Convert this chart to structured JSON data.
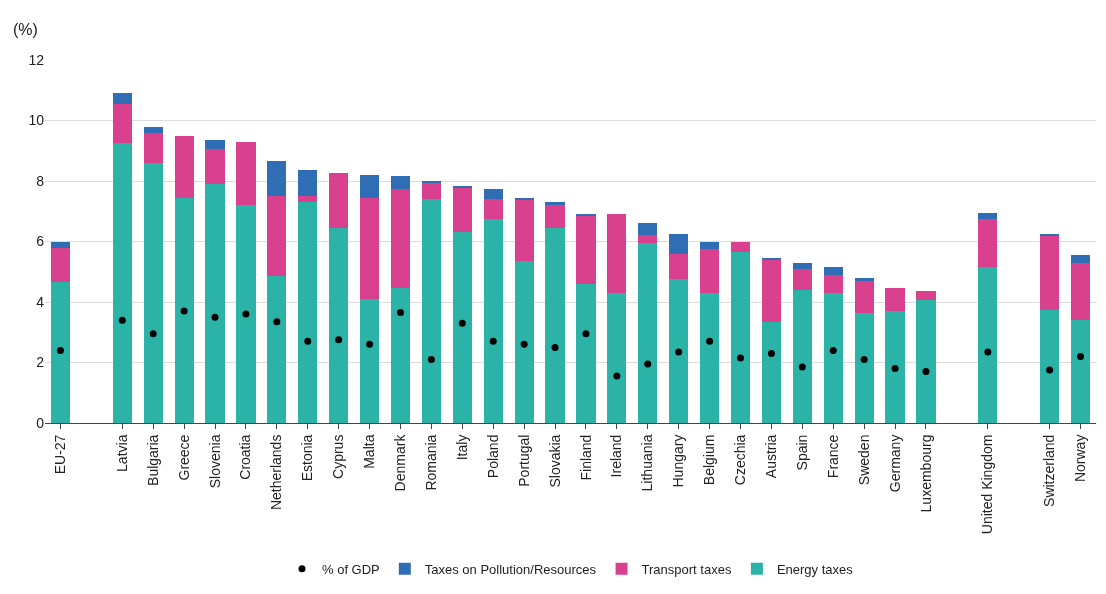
{
  "chart_data": {
    "type": "bar",
    "stacked": true,
    "ylabel": "(%)",
    "categories": [
      "EU-27",
      null,
      "Latvia",
      "Bulgaria",
      "Greece",
      "Slovenia",
      "Croatia",
      "Netherlands",
      "Estonia",
      "Cyprus",
      "Malta",
      "Denmark",
      "Romania",
      "Italy",
      "Poland",
      "Portugal",
      "Slovakia",
      "Finland",
      "Ireland",
      "Lithuania",
      "Hungary",
      "Belgium",
      "Czechia",
      "Austria",
      "Spain",
      "France",
      "Sweden",
      "Germany",
      "Luxembourg",
      null,
      "United Kingdom",
      null,
      "Switzerland",
      "Norway"
    ],
    "series": [
      {
        "name": "Energy taxes",
        "color": "#2bb3a8",
        "values": [
          4.65,
          null,
          9.25,
          8.6,
          7.45,
          7.9,
          7.2,
          4.85,
          7.3,
          6.45,
          4.1,
          4.45,
          7.4,
          6.3,
          6.75,
          5.35,
          6.45,
          4.6,
          4.3,
          5.95,
          4.75,
          4.3,
          5.65,
          3.35,
          4.4,
          4.3,
          3.65,
          3.7,
          4.05,
          null,
          5.15,
          null,
          3.75,
          3.4
        ]
      },
      {
        "name": "Transport taxes",
        "color": "#d9418f",
        "values": [
          1.15,
          null,
          1.3,
          1.0,
          2.05,
          1.15,
          2.1,
          2.65,
          0.2,
          1.8,
          3.35,
          3.3,
          0.55,
          1.5,
          0.65,
          2.05,
          0.75,
          2.25,
          2.6,
          0.25,
          0.85,
          1.45,
          0.35,
          2.05,
          0.7,
          0.6,
          1.05,
          0.75,
          0.3,
          null,
          1.6,
          null,
          2.45,
          1.9
        ]
      },
      {
        "name": "Taxes on Pollution/Resources",
        "color": "#2f6db5",
        "values": [
          0.2,
          null,
          0.35,
          0.2,
          0,
          0.3,
          0,
          1.15,
          0.85,
          0,
          0.75,
          0.4,
          0.05,
          0.05,
          0.35,
          0.05,
          0.1,
          0.05,
          0,
          0.4,
          0.65,
          0.25,
          0,
          0.05,
          0.2,
          0.25,
          0.1,
          0,
          0,
          null,
          0.2,
          null,
          0.05,
          0.25
        ]
      },
      {
        "name": "% of GDP",
        "type": "scatter",
        "marker": "circle",
        "color": "#000000",
        "values": [
          2.4,
          null,
          3.4,
          2.95,
          3.7,
          3.5,
          3.6,
          3.35,
          2.7,
          2.75,
          2.6,
          3.65,
          2.1,
          3.3,
          2.7,
          2.6,
          2.5,
          2.95,
          1.55,
          1.95,
          2.35,
          2.7,
          2.15,
          2.3,
          1.85,
          2.4,
          2.1,
          1.8,
          1.7,
          null,
          2.35,
          null,
          1.75,
          2.2
        ]
      }
    ],
    "ylim": [
      0,
      12
    ],
    "yticks": [
      0,
      2,
      4,
      6,
      8,
      10,
      12
    ],
    "grid": "y",
    "legend": "bottom"
  }
}
